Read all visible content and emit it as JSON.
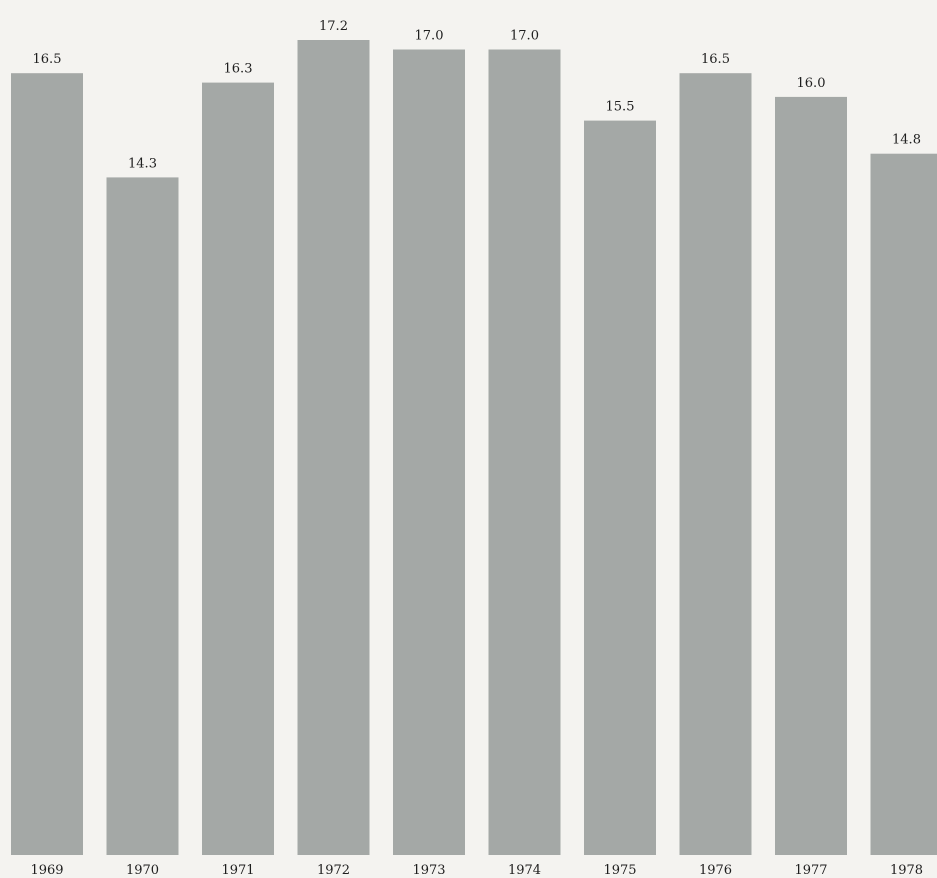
{
  "chart_data": {
    "type": "bar",
    "categories": [
      "1969",
      "1970",
      "1971",
      "1972",
      "1973",
      "1974",
      "1975",
      "1976",
      "1977",
      "1978"
    ],
    "values": [
      16.5,
      14.3,
      16.3,
      17.2,
      17.0,
      17.0,
      15.5,
      16.5,
      16.0,
      14.8
    ],
    "value_labels": [
      "16.5",
      "14.3",
      "16.3",
      "17.2",
      "17.0",
      "17.0",
      "15.5",
      "16.5",
      "16.0",
      "14.8"
    ],
    "ylim": [
      0,
      17.2
    ],
    "grid": false,
    "legend": "none",
    "bar_color": "#a4a8a6",
    "background_color": "#f4f3f0"
  }
}
